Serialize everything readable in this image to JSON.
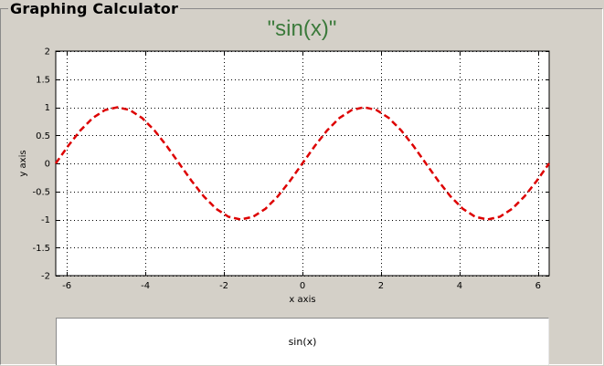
{
  "window": {
    "title": "Graphing Calculator"
  },
  "plot": {
    "title": "\"sin(x)\""
  },
  "expression": {
    "value": "sin(x)"
  },
  "chart_data": {
    "type": "line",
    "title": "\"sin(x)\"",
    "xlabel": "x axis",
    "ylabel": "y axis",
    "xlim": [
      -6.2832,
      6.2832
    ],
    "ylim": [
      -2,
      2
    ],
    "xticks": [
      -6,
      -4,
      -2,
      0,
      2,
      4,
      6
    ],
    "yticks": [
      -2,
      -1.5,
      -1,
      -0.5,
      0,
      0.5,
      1,
      1.5,
      2
    ],
    "grid": true,
    "grid_style": "dotted",
    "series": [
      {
        "function": "sin(x)",
        "color": "#dd0000",
        "line_style": "dashed",
        "x": [
          -6.2832,
          -5.969,
          -5.6549,
          -5.3407,
          -5.0265,
          -4.7124,
          -4.3982,
          -4.0841,
          -3.7699,
          -3.4558,
          -3.1416,
          -2.8274,
          -2.5133,
          -2.1991,
          -1.885,
          -1.5708,
          -1.2566,
          -0.9425,
          -0.6283,
          -0.3142,
          0,
          0.3142,
          0.6283,
          0.9425,
          1.2566,
          1.5708,
          1.885,
          2.1991,
          2.5133,
          2.8274,
          3.1416,
          3.4558,
          3.7699,
          4.0841,
          4.3982,
          4.7124,
          5.0265,
          5.3407,
          5.6549,
          5.969,
          6.2832
        ],
        "y": [
          0,
          0.309,
          0.588,
          0.809,
          0.951,
          1,
          0.951,
          0.809,
          0.588,
          0.309,
          0,
          -0.309,
          -0.588,
          -0.809,
          -0.951,
          -1,
          -0.951,
          -0.809,
          -0.588,
          -0.309,
          0,
          0.309,
          0.588,
          0.809,
          0.951,
          1,
          0.951,
          0.809,
          0.588,
          0.309,
          0,
          -0.309,
          -0.588,
          -0.809,
          -0.951,
          -1,
          -0.951,
          -0.809,
          -0.588,
          -0.309,
          0
        ]
      }
    ]
  }
}
